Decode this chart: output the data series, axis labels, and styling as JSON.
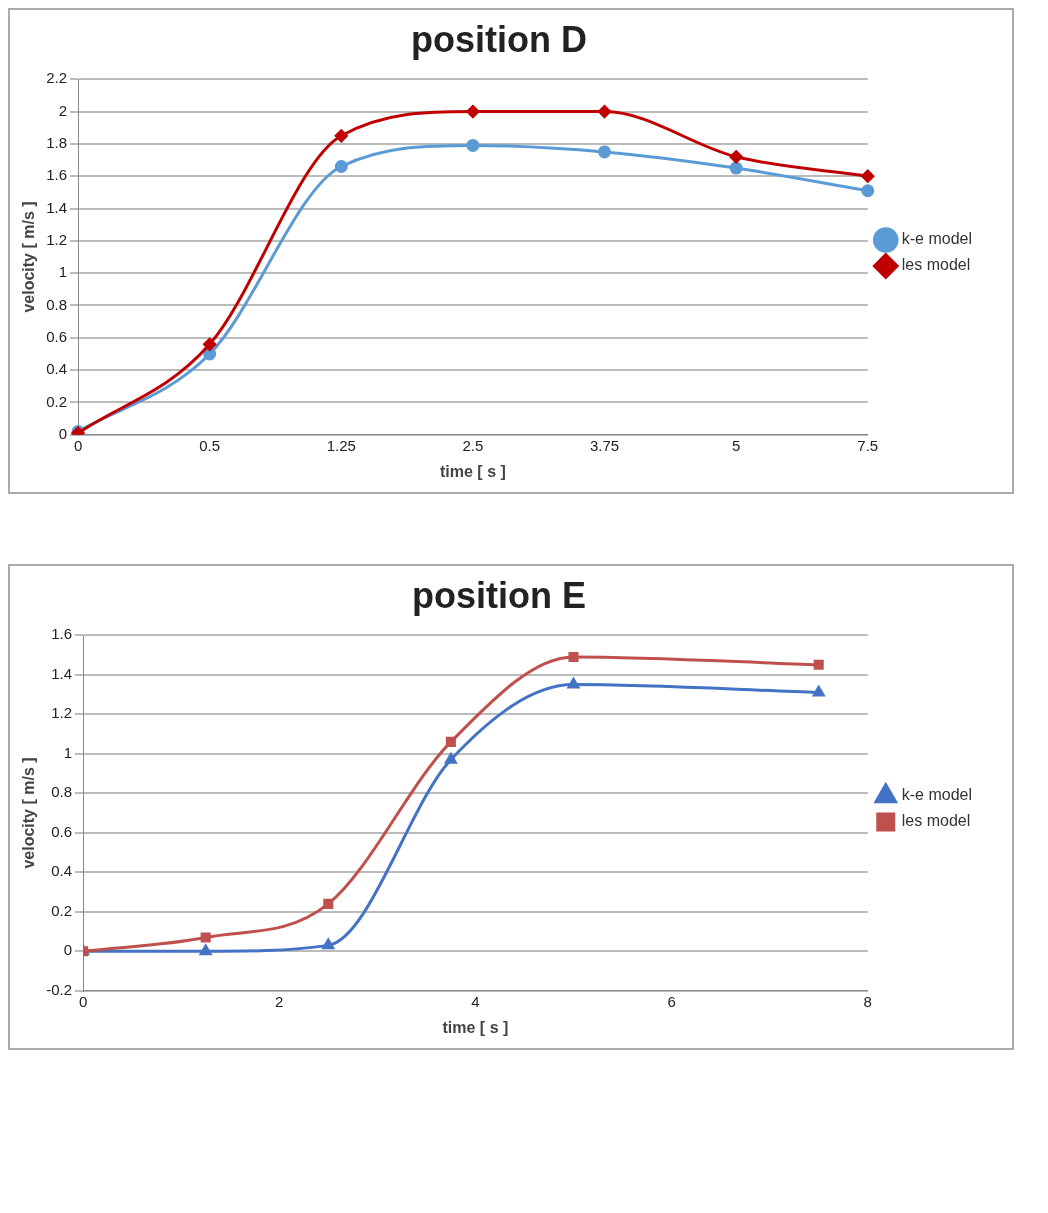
{
  "chart_data": [
    {
      "type": "line",
      "title": "position D",
      "xlabel": "time [ s ]",
      "ylabel": "velocity [ m/s ]",
      "categories": [
        "0",
        "0.5",
        "1.25",
        "2.5",
        "3.75",
        "5",
        "7.5"
      ],
      "series": [
        {
          "name": "k-e model",
          "color": "#5b9bd5",
          "marker": "circle",
          "values": [
            0.02,
            0.5,
            1.66,
            1.79,
            1.75,
            1.65,
            1.51
          ]
        },
        {
          "name": "les model",
          "color": "#c00000",
          "marker": "diamond",
          "values": [
            0.01,
            0.56,
            1.85,
            2.0,
            2.0,
            1.72,
            1.6
          ]
        }
      ],
      "ylim": [
        0,
        2.2
      ],
      "yticks": [
        0,
        0.2,
        0.4,
        0.6,
        0.8,
        1,
        1.2,
        1.4,
        1.6,
        1.8,
        2,
        2.2
      ],
      "grid": "y",
      "legend": "right"
    },
    {
      "type": "line",
      "title": "position E",
      "xlabel": "time [ s ]",
      "ylabel": "velocity [ m/s ]",
      "x": [
        0,
        1.25,
        2.5,
        3.75,
        5,
        7.5
      ],
      "series": [
        {
          "name": "k-e model",
          "color": "#4472c4",
          "marker": "triangle",
          "values": [
            0,
            0,
            0.03,
            0.97,
            1.35,
            1.31
          ]
        },
        {
          "name": "les model",
          "color": "#c0504d",
          "marker": "square",
          "values": [
            0,
            0.07,
            0.24,
            1.06,
            1.49,
            1.45
          ]
        }
      ],
      "xlim": [
        0,
        8
      ],
      "xticks": [
        0,
        2,
        4,
        6,
        8
      ],
      "ylim": [
        -0.2,
        1.6
      ],
      "yticks": [
        -0.2,
        0,
        0.2,
        0.4,
        0.6,
        0.8,
        1,
        1.2,
        1.4,
        1.6
      ],
      "grid": "y",
      "legend": "right"
    }
  ]
}
